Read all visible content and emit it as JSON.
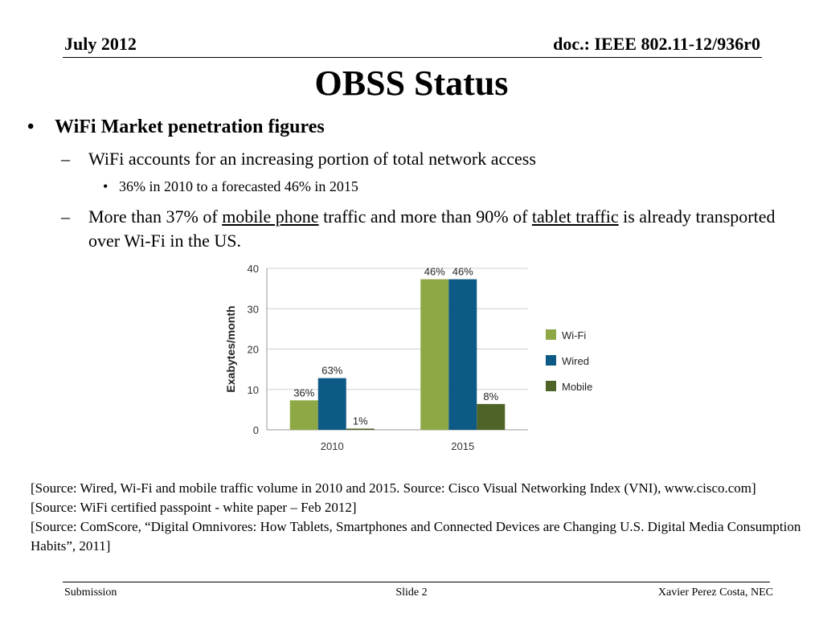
{
  "header": {
    "date": "July 2012",
    "doc": "doc.: IEEE 802.11-12/936r0"
  },
  "title": "OBSS Status",
  "bullets": {
    "b1": "WiFi Market penetration figures",
    "b1_1": "WiFi accounts for an increasing portion of total network access",
    "b1_1_1": "36% in 2010 to a forecasted 46% in 2015",
    "b1_2": {
      "part1": "More than 37% of ",
      "link1": "mobile phone",
      "part2": " traffic and more than 90% of ",
      "link2": "tablet traffic",
      "part3": " is already transported over Wi-Fi in the US."
    }
  },
  "chart_data": {
    "type": "bar",
    "categories": [
      "2010",
      "2015"
    ],
    "series": [
      {
        "name": "Wi-Fi",
        "values": [
          7.3,
          37.3
        ],
        "labels": [
          "36%",
          "46%"
        ],
        "color": "#8ea845"
      },
      {
        "name": "Wired",
        "values": [
          12.8,
          37.3
        ],
        "labels": [
          "63%",
          "46%"
        ],
        "color": "#0e5a86"
      },
      {
        "name": "Mobile",
        "values": [
          0.3,
          6.4
        ],
        "labels": [
          "1%",
          "8%"
        ],
        "color": "#4e6327"
      }
    ],
    "ylabel": "Exabytes/month",
    "ylim": [
      0,
      40
    ],
    "yticks": [
      0,
      10,
      20,
      30,
      40
    ],
    "grid": true,
    "legend": "right"
  },
  "sources": [
    "[Source: Wired, Wi-Fi and mobile traffic volume in 2010 and 2015. Source: Cisco Visual Networking Index (VNI), www.cisco.com]",
    "[Source: WiFi certified passpoint - white paper – Feb 2012]",
    "[Source: ComScore, “Digital Omnivores: How Tablets, Smartphones and Connected Devices are Changing U.S. Digital Media Consumption Habits”, 2011]"
  ],
  "footer": {
    "left": "Submission",
    "center": "Slide 2",
    "right": "Xavier Perez Costa, NEC"
  }
}
